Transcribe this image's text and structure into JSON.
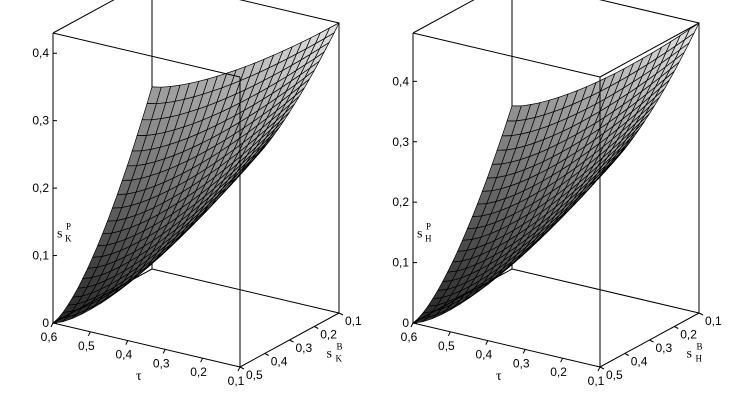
{
  "chart_data": [
    {
      "type": "surface",
      "z_label": {
        "base": "s",
        "sup": "P",
        "sub": "K"
      },
      "x_label": "τ",
      "y_label": {
        "base": "s",
        "sup": "B",
        "sub": "K"
      },
      "x_ticks": [
        "0,6",
        "0,5",
        "0,4",
        "0,3",
        "0,2",
        "0,1"
      ],
      "y_ticks": [
        "0,1",
        "0,2",
        "0,3",
        "0,4",
        "0,5"
      ],
      "z_ticks": [
        "0",
        "0,1",
        "0,2",
        "0,3",
        "0,4"
      ],
      "x_range": [
        0.1,
        0.6
      ],
      "y_range": [
        0.1,
        0.5
      ],
      "z_range": [
        0,
        0.43
      ],
      "z_ticks_values": [
        0,
        0.1,
        0.2,
        0.3,
        0.4
      ],
      "grid_resolution": 20,
      "model": "z peaks at (τ=0.1, s^B=0.1) ≈ 0.43; ≈0.29 at (τ=0.1, s^B=0.5); ≈0.27 at (τ=0.6, s^B=0.1); ≈0 at (τ=0.6, s^B=0.5)"
    },
    {
      "type": "surface",
      "z_label": {
        "base": "s",
        "sup": "P",
        "sub": "H"
      },
      "x_label": "τ",
      "y_label": {
        "base": "s",
        "sup": "B",
        "sub": "H"
      },
      "x_ticks": [
        "0,6",
        "0,5",
        "0,4",
        "0,3",
        "0,2",
        "0,1"
      ],
      "y_ticks": [
        "0,1",
        "0,2",
        "0,3",
        "0,4",
        "0,5"
      ],
      "z_ticks": [
        "0",
        "0,1",
        "0,2",
        "0,3",
        "0,4"
      ],
      "x_range": [
        0.1,
        0.6
      ],
      "y_range": [
        0.1,
        0.5
      ],
      "z_range": [
        0,
        0.48
      ],
      "z_ticks_values": [
        0,
        0.1,
        0.2,
        0.3,
        0.4
      ],
      "grid_resolution": 20,
      "model": "z peaks at (τ=0.1, s^B=0.1) ≈ 0.48; ≈0.32 at (τ=0.1, s^B=0.5); ≈0.28 at (τ=0.6, s^B=0.1); ≈0 at (τ=0.6, s^B=0.5)"
    }
  ]
}
